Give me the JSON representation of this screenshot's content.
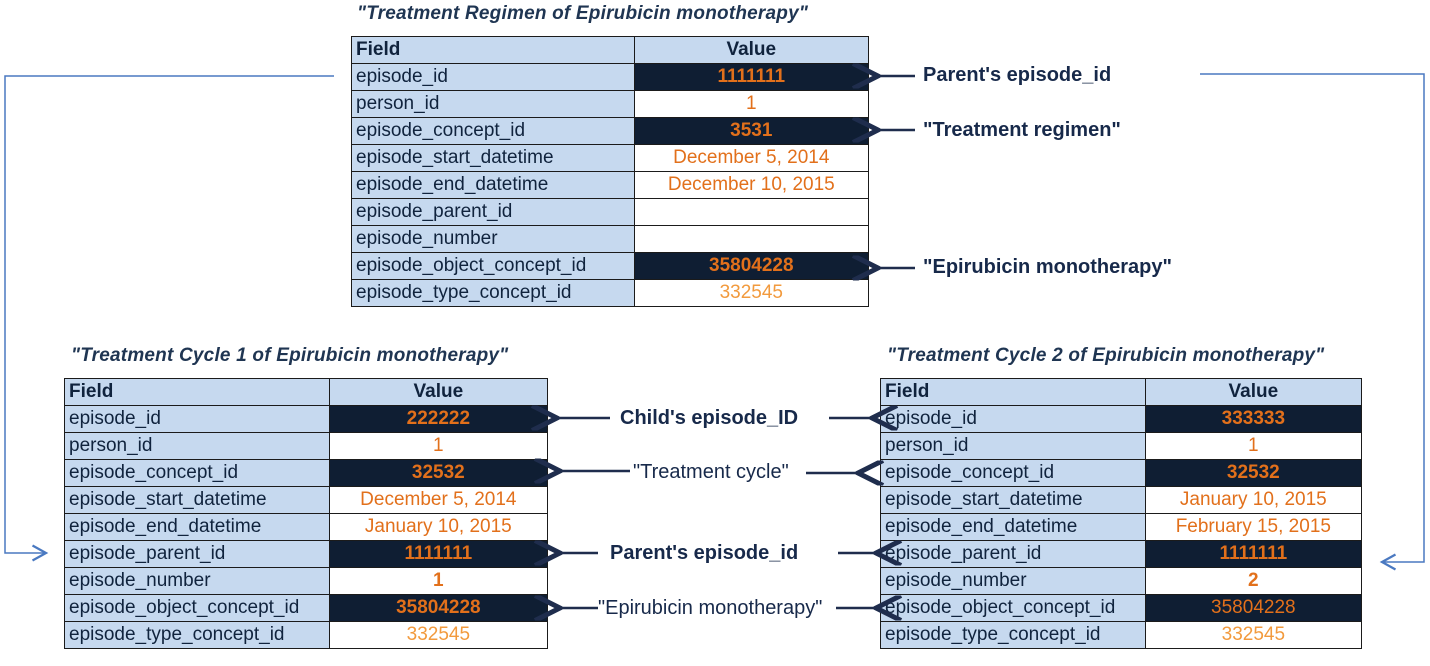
{
  "regimen": {
    "title": "\"Treatment Regimen of Epirubicin monotherapy\"",
    "header_field": "Field",
    "header_value": "Value",
    "rows": [
      {
        "field": "episode_id",
        "value": "1111111"
      },
      {
        "field": "person_id",
        "value": "1"
      },
      {
        "field": "episode_concept_id",
        "value": "3531"
      },
      {
        "field": "episode_start_datetime",
        "value": "December 5, 2014"
      },
      {
        "field": "episode_end_datetime",
        "value": "December 10, 2015"
      },
      {
        "field": "episode_parent_id",
        "value": ""
      },
      {
        "field": "episode_number",
        "value": ""
      },
      {
        "field": "episode_object_concept_id",
        "value": "35804228"
      },
      {
        "field": "episode_type_concept_id",
        "value": "332545"
      }
    ]
  },
  "cycle1": {
    "title": "\"Treatment Cycle 1 of Epirubicin monotherapy\"",
    "header_field": "Field",
    "header_value": "Value",
    "rows": [
      {
        "field": "episode_id",
        "value": "222222"
      },
      {
        "field": "person_id",
        "value": "1"
      },
      {
        "field": "episode_concept_id",
        "value": "32532"
      },
      {
        "field": "episode_start_datetime",
        "value": "December 5, 2014"
      },
      {
        "field": "episode_end_datetime",
        "value": "January 10, 2015"
      },
      {
        "field": "episode_parent_id",
        "value": "1111111"
      },
      {
        "field": "episode_number",
        "value": "1"
      },
      {
        "field": "episode_object_concept_id",
        "value": "35804228"
      },
      {
        "field": "episode_type_concept_id",
        "value": "332545"
      }
    ]
  },
  "cycle2": {
    "title": "\"Treatment Cycle 2 of Epirubicin monotherapy\"",
    "header_field": "Field",
    "header_value": "Value",
    "rows": [
      {
        "field": "episode_id",
        "value": "333333"
      },
      {
        "field": "person_id",
        "value": "1"
      },
      {
        "field": "episode_concept_id",
        "value": "32532"
      },
      {
        "field": "episode_start_datetime",
        "value": "January 10, 2015"
      },
      {
        "field": "episode_end_datetime",
        "value": "February 15, 2015"
      },
      {
        "field": "episode_parent_id",
        "value": "1111111"
      },
      {
        "field": "episode_number",
        "value": "2"
      },
      {
        "field": "episode_object_concept_id",
        "value": "35804228"
      },
      {
        "field": "episode_type_concept_id",
        "value": "332545"
      }
    ]
  },
  "annotations": {
    "regimen_parent_id": "Parent's episode_id",
    "regimen_concept": "\"Treatment regimen\"",
    "regimen_object": "\"Epirubicin monotherapy\"",
    "child_id": "Child's episode_ID",
    "cycle_concept": "\"Treatment cycle\"",
    "cycle_parent_id": "Parent's episode_id",
    "cycle_object": "\"Epirubicin monotherapy\""
  },
  "colors": {
    "field_bg": "#c6d9ef",
    "dark_value_bg": "#0f1e33",
    "value_text": "#e2701b",
    "arrow_dark": "#1f2d4d",
    "connector_blue": "#4a79c1"
  }
}
